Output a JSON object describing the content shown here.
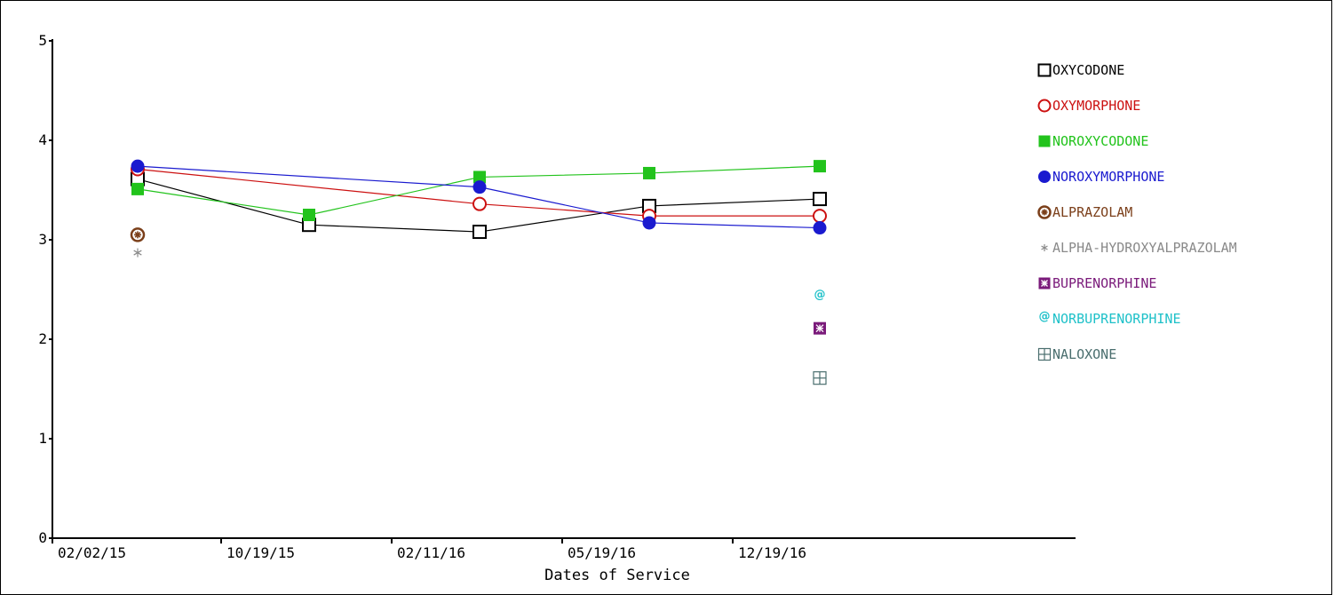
{
  "chart_data": {
    "type": "line",
    "xlabel": "Dates of Service",
    "ylabel": "",
    "ylim": [
      0,
      5
    ],
    "yticks": [
      "0",
      "1",
      "2",
      "3",
      "4",
      "5"
    ],
    "categories": [
      "02/02/15",
      "10/19/15",
      "02/11/16",
      "05/19/16",
      "12/19/16"
    ],
    "grid": false,
    "legend_position": "right",
    "series": [
      {
        "name": "OXYCODONE",
        "color": "#000000",
        "marker": "square-open",
        "connected": true,
        "points": [
          [
            0,
            3.61
          ],
          [
            1,
            3.15
          ],
          [
            2,
            3.08
          ],
          [
            3,
            3.34
          ],
          [
            4,
            3.41
          ]
        ]
      },
      {
        "name": "OXYMORPHONE",
        "color": "#cc1111",
        "marker": "circle-open",
        "connected": true,
        "points": [
          [
            0,
            3.71
          ],
          [
            2,
            3.36
          ],
          [
            3,
            3.24
          ],
          [
            4,
            3.24
          ]
        ]
      },
      {
        "name": "NOROXYCODONE",
        "color": "#22c31c",
        "marker": "square-filled",
        "connected": true,
        "points": [
          [
            0,
            3.51
          ],
          [
            1,
            3.25
          ],
          [
            2,
            3.63
          ],
          [
            3,
            3.67
          ],
          [
            4,
            3.74
          ]
        ]
      },
      {
        "name": "NOROXYMORPHONE",
        "color": "#1a1acf",
        "marker": "circle-filled",
        "connected": true,
        "points": [
          [
            0,
            3.74
          ],
          [
            2,
            3.53
          ],
          [
            3,
            3.17
          ],
          [
            4,
            3.12
          ]
        ]
      },
      {
        "name": "ALPRAZOLAM",
        "color": "#7b3f1a",
        "marker": "circle-star",
        "connected": false,
        "points": [
          [
            0,
            3.05
          ]
        ]
      },
      {
        "name": "ALPHA-HYDROXYALPRAZOLAM",
        "color": "#8a8a8a",
        "marker": "asterisk",
        "connected": false,
        "points": [
          [
            0,
            2.87
          ]
        ]
      },
      {
        "name": "BUPRENORPHINE",
        "color": "#7a1a7a",
        "marker": "square-x",
        "connected": false,
        "points": [
          [
            4,
            2.11
          ]
        ]
      },
      {
        "name": "NORBUPRENORPHINE",
        "color": "#1fc1c9",
        "marker": "at",
        "connected": false,
        "points": [
          [
            4,
            2.45
          ]
        ]
      },
      {
        "name": "NALOXONE",
        "color": "#4a6e6e",
        "marker": "square-plus",
        "connected": false,
        "points": [
          [
            4,
            1.61
          ]
        ]
      }
    ]
  }
}
